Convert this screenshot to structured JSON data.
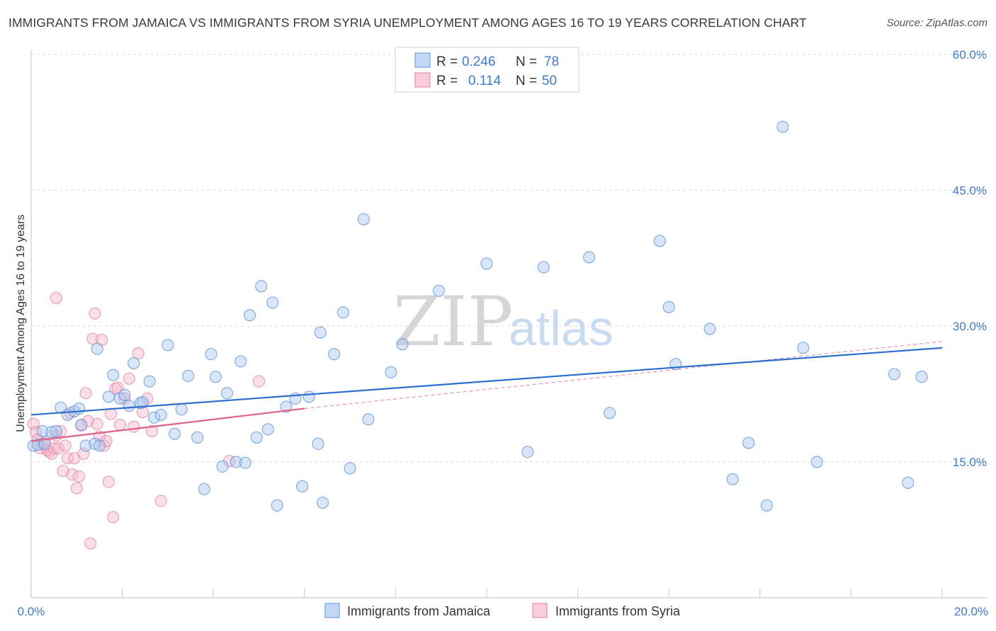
{
  "title": "IMMIGRANTS FROM JAMAICA VS IMMIGRANTS FROM SYRIA UNEMPLOYMENT AMONG AGES 16 TO 19 YEARS CORRELATION CHART",
  "source": "Source: ZipAtlas.com",
  "watermark": {
    "zip": "ZIP",
    "atlas": "atlas"
  },
  "legend_top": {
    "r_label": "R =",
    "n_label": "N =",
    "entries": [
      {
        "r": "0.246",
        "n": "78"
      },
      {
        "r": "0.114",
        "n": "50"
      }
    ]
  },
  "legend_bottom": [
    "Immigrants from Jamaica",
    "Immigrants from Syria"
  ],
  "colors": {
    "jamaica_fill": "#a9c8f0",
    "jamaica_stroke": "#5b93d9",
    "jamaica_line": "#2b6fce",
    "syria_fill": "#f6b8cb",
    "syria_stroke": "#e57d9f",
    "syria_line": "#e0608a",
    "axis_text": "#3d7bd4",
    "grid": "#d9d9d9"
  },
  "chart_data": {
    "type": "scatter",
    "title": "IMMIGRANTS FROM JAMAICA VS IMMIGRANTS FROM SYRIA UNEMPLOYMENT AMONG AGES 16 TO 19 YEARS CORRELATION CHART",
    "xlabel": "",
    "ylabel": "Unemployment Among Ages 16 to 19 years",
    "xlim": [
      0,
      20
    ],
    "ylim": [
      0,
      60
    ],
    "x_tick_labels": [
      "0.0%",
      "20.0%"
    ],
    "y_ticks": [
      15,
      30,
      45,
      60
    ],
    "y_tick_labels": [
      "15.0%",
      "30.0%",
      "45.0%",
      "60.0%"
    ],
    "grid": true,
    "series": [
      {
        "name": "Immigrants from Jamaica",
        "R": 0.246,
        "N": 78,
        "trend": {
          "x": [
            0,
            20
          ],
          "y": [
            20.2,
            27.6
          ]
        },
        "points": [
          [
            0.05,
            16.8
          ],
          [
            0.15,
            16.9
          ],
          [
            0.25,
            18.4
          ],
          [
            0.3,
            17.0
          ],
          [
            0.45,
            18.3
          ],
          [
            0.55,
            18.4
          ],
          [
            0.65,
            21.0
          ],
          [
            0.8,
            20.2
          ],
          [
            0.95,
            20.6
          ],
          [
            1.05,
            20.9
          ],
          [
            1.1,
            19.1
          ],
          [
            1.2,
            16.8
          ],
          [
            1.4,
            17.0
          ],
          [
            1.5,
            16.8
          ],
          [
            1.45,
            27.5
          ],
          [
            1.7,
            22.2
          ],
          [
            1.8,
            24.6
          ],
          [
            1.95,
            22.0
          ],
          [
            2.05,
            22.4
          ],
          [
            2.15,
            21.2
          ],
          [
            2.25,
            25.9
          ],
          [
            2.4,
            21.5
          ],
          [
            2.45,
            21.6
          ],
          [
            2.6,
            23.9
          ],
          [
            2.7,
            19.9
          ],
          [
            2.85,
            20.2
          ],
          [
            3.0,
            27.9
          ],
          [
            3.15,
            18.1
          ],
          [
            3.3,
            20.8
          ],
          [
            3.45,
            24.5
          ],
          [
            3.65,
            17.7
          ],
          [
            3.8,
            12.0
          ],
          [
            3.95,
            26.9
          ],
          [
            4.05,
            24.4
          ],
          [
            4.2,
            14.5
          ],
          [
            4.3,
            22.6
          ],
          [
            4.5,
            15.0
          ],
          [
            4.6,
            26.1
          ],
          [
            4.7,
            14.9
          ],
          [
            4.8,
            31.2
          ],
          [
            4.95,
            17.7
          ],
          [
            5.05,
            34.4
          ],
          [
            5.2,
            18.6
          ],
          [
            5.3,
            32.6
          ],
          [
            5.4,
            10.2
          ],
          [
            5.6,
            21.1
          ],
          [
            5.8,
            22.0
          ],
          [
            5.95,
            12.3
          ],
          [
            6.1,
            22.2
          ],
          [
            6.3,
            17.0
          ],
          [
            6.35,
            29.3
          ],
          [
            6.4,
            10.5
          ],
          [
            6.65,
            26.9
          ],
          [
            6.85,
            31.5
          ],
          [
            7.0,
            14.3
          ],
          [
            7.3,
            41.8
          ],
          [
            7.4,
            19.7
          ],
          [
            7.9,
            24.9
          ],
          [
            8.15,
            28.0
          ],
          [
            8.95,
            33.9
          ],
          [
            10.0,
            36.9
          ],
          [
            10.9,
            16.1
          ],
          [
            11.25,
            36.5
          ],
          [
            12.25,
            37.6
          ],
          [
            12.7,
            20.4
          ],
          [
            13.8,
            39.4
          ],
          [
            14.0,
            32.1
          ],
          [
            14.15,
            25.8
          ],
          [
            14.9,
            29.7
          ],
          [
            15.4,
            13.1
          ],
          [
            15.75,
            17.1
          ],
          [
            16.15,
            10.2
          ],
          [
            16.5,
            52.0
          ],
          [
            16.95,
            27.6
          ],
          [
            17.25,
            15.0
          ],
          [
            18.95,
            24.7
          ],
          [
            19.25,
            12.7
          ],
          [
            19.55,
            24.4
          ]
        ]
      },
      {
        "name": "Immigrants from Syria",
        "R": 0.114,
        "N": 50,
        "trend": {
          "x": [
            0,
            6
          ],
          "y": [
            17.3,
            20.9
          ]
        },
        "trend_extended": {
          "x": [
            6,
            20
          ],
          "y": [
            20.9,
            28.3
          ]
        },
        "points": [
          [
            0.05,
            19.2
          ],
          [
            0.1,
            18.3
          ],
          [
            0.15,
            17.5
          ],
          [
            0.2,
            16.5
          ],
          [
            0.25,
            17.0
          ],
          [
            0.3,
            17.2
          ],
          [
            0.35,
            16.3
          ],
          [
            0.4,
            16.1
          ],
          [
            0.45,
            15.9
          ],
          [
            0.5,
            16.5
          ],
          [
            0.55,
            17.9
          ],
          [
            0.6,
            16.5
          ],
          [
            0.65,
            18.4
          ],
          [
            0.7,
            14.0
          ],
          [
            0.75,
            16.8
          ],
          [
            0.8,
            15.4
          ],
          [
            0.85,
            20.4
          ],
          [
            0.9,
            13.6
          ],
          [
            0.95,
            15.4
          ],
          [
            1.0,
            12.1
          ],
          [
            1.05,
            13.4
          ],
          [
            1.1,
            19.0
          ],
          [
            1.15,
            15.9
          ],
          [
            1.2,
            22.6
          ],
          [
            1.25,
            19.5
          ],
          [
            1.3,
            6.0
          ],
          [
            1.35,
            28.6
          ],
          [
            1.4,
            31.4
          ],
          [
            1.45,
            19.2
          ],
          [
            1.5,
            17.8
          ],
          [
            1.55,
            28.5
          ],
          [
            1.6,
            16.8
          ],
          [
            1.65,
            17.3
          ],
          [
            1.7,
            12.8
          ],
          [
            1.75,
            20.3
          ],
          [
            1.8,
            8.9
          ],
          [
            1.85,
            23.1
          ],
          [
            1.9,
            23.2
          ],
          [
            1.95,
            19.1
          ],
          [
            2.05,
            22.0
          ],
          [
            2.15,
            24.2
          ],
          [
            2.25,
            18.9
          ],
          [
            2.35,
            27.0
          ],
          [
            2.45,
            20.5
          ],
          [
            2.55,
            22.0
          ],
          [
            2.65,
            18.4
          ],
          [
            2.85,
            10.7
          ],
          [
            4.35,
            15.1
          ],
          [
            5.0,
            23.9
          ],
          [
            0.55,
            33.1
          ]
        ]
      }
    ]
  }
}
